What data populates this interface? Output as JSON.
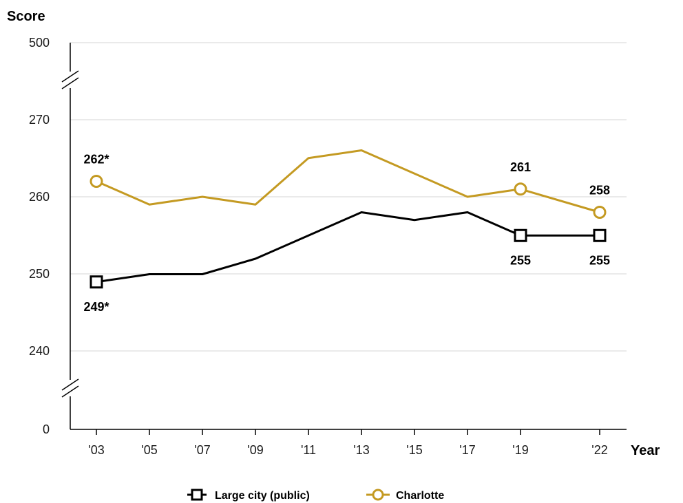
{
  "chart_data": {
    "type": "line",
    "title": "",
    "ylabel": "Score",
    "xlabel": "Year",
    "categories": [
      "'03",
      "'05",
      "'07",
      "'09",
      "'11",
      "'13",
      "'15",
      "'17",
      "'19",
      "'22"
    ],
    "y_ticks": [
      "500",
      "270",
      "260",
      "250",
      "240",
      "0"
    ],
    "ylim": [
      235,
      275
    ],
    "axis_breaks": [
      "between 270 and 500",
      "between 0 and 240"
    ],
    "grid": true,
    "legend_position": "bottom-center",
    "series": [
      {
        "name": "Large city (public)",
        "marker": "square",
        "color": "#000000",
        "values": [
          249,
          250,
          250,
          252,
          255,
          258,
          257,
          258,
          255,
          255
        ],
        "labels": [
          {
            "index": 0,
            "text": "249*",
            "position": "below"
          },
          {
            "index": 8,
            "text": "255",
            "position": "below"
          },
          {
            "index": 9,
            "text": "255",
            "position": "below"
          }
        ]
      },
      {
        "name": "Charlotte",
        "marker": "circle",
        "color": "#c49a22",
        "values": [
          262,
          259,
          260,
          259,
          265,
          266,
          263,
          260,
          261,
          258
        ],
        "labels": [
          {
            "index": 0,
            "text": "262*",
            "position": "above"
          },
          {
            "index": 8,
            "text": "261",
            "position": "above"
          },
          {
            "index": 9,
            "text": "258",
            "position": "above"
          }
        ]
      }
    ]
  }
}
